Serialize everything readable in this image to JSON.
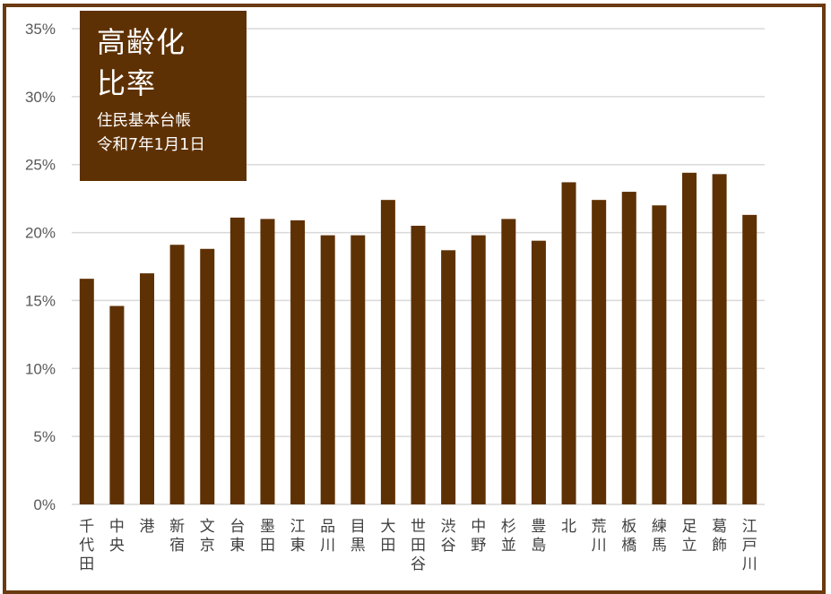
{
  "chart_data": {
    "type": "bar",
    "title": "高齢化比率",
    "subtitle_lines": [
      "住民基本台帳",
      "令和7年1月1日"
    ],
    "categories": [
      "千代田",
      "中央",
      "港",
      "新宿",
      "文京",
      "台東",
      "墨田",
      "江東",
      "品川",
      "目黒",
      "大田",
      "世田谷",
      "渋谷",
      "中野",
      "杉並",
      "豊島",
      "北",
      "荒川",
      "板橋",
      "練馬",
      "足立",
      "葛飾",
      "江戸川"
    ],
    "values": [
      16.6,
      14.6,
      17.0,
      19.1,
      18.8,
      21.1,
      21.0,
      20.9,
      19.8,
      19.8,
      22.4,
      20.5,
      18.7,
      19.8,
      21.0,
      19.4,
      23.7,
      22.4,
      23.0,
      22.0,
      24.4,
      24.3,
      21.3
    ],
    "ylim": [
      0,
      35
    ],
    "yticks": [
      0,
      5,
      10,
      15,
      20,
      25,
      30,
      35
    ],
    "ytick_labels": [
      "0%",
      "5%",
      "10%",
      "15%",
      "20%",
      "25%",
      "30%",
      "35%"
    ],
    "xlabel": "",
    "ylabel": "",
    "grid": true,
    "legend": "none"
  },
  "colors": {
    "bar": "#5e3104",
    "frame": "#6b3a10",
    "grid": "#d9d9d9",
    "title_box": "#5e3104"
  }
}
